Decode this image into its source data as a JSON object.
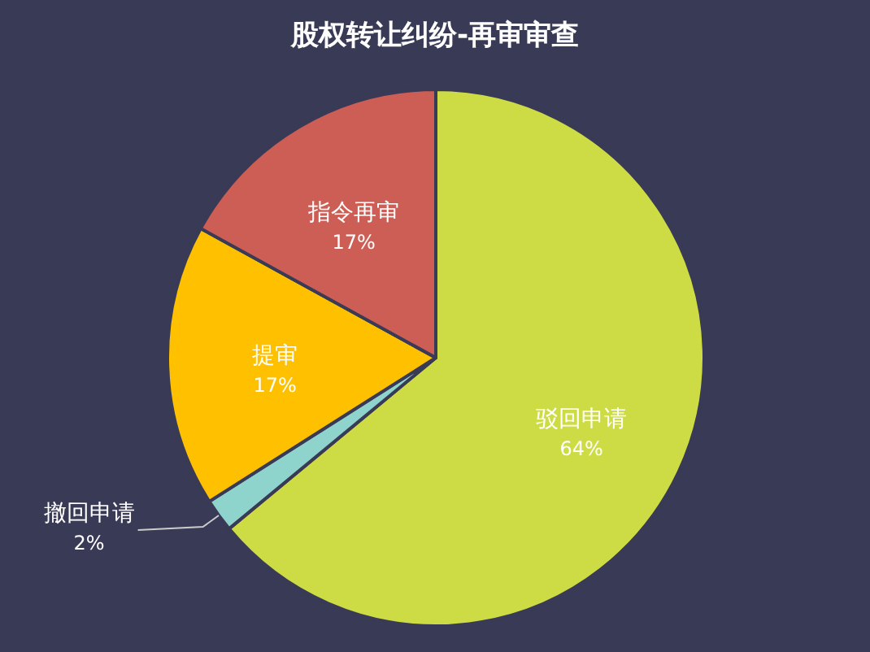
{
  "chart_data": {
    "type": "pie",
    "title": "股权转让纠纷-再审审查",
    "categories": [
      "驳回申请",
      "撤回申请",
      "提审",
      "指令再审"
    ],
    "values": [
      64,
      2,
      17,
      17
    ],
    "colors": [
      "#cddc45",
      "#8fd3cd",
      "#ffc000",
      "#cd5e55"
    ],
    "value_labels": [
      "64%",
      "2%",
      "17%",
      "17%"
    ],
    "legend": false
  }
}
